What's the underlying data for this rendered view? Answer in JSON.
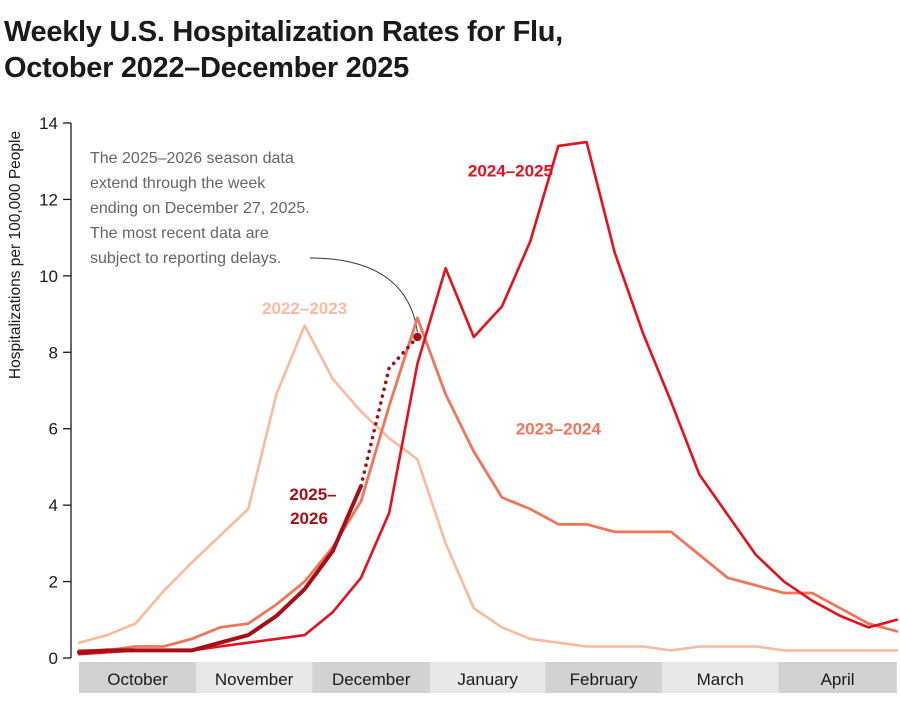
{
  "title": {
    "line1": "Weekly U.S. Hospitalization Rates for Flu,",
    "line2": "October 2022–December 2025"
  },
  "chart_data": {
    "type": "line",
    "title": "Weekly U.S. Hospitalization Rates for Flu, October 2022–December 2025",
    "xlabel": "",
    "ylabel": "Hospitalizations per 100,000 People",
    "ylim": [
      0,
      14
    ],
    "yticks": [
      0,
      2,
      4,
      6,
      8,
      10,
      12,
      14
    ],
    "grid": false,
    "x_unit": "week of flu season (week 0 = start of October)",
    "x_range": [
      0,
      29
    ],
    "months": [
      {
        "label": "October",
        "start_week": 0,
        "end_week": 4.15,
        "shade": "dark"
      },
      {
        "label": "November",
        "start_week": 4.15,
        "end_week": 8.27,
        "shade": "light"
      },
      {
        "label": "December",
        "start_week": 8.27,
        "end_week": 12.45,
        "shade": "dark"
      },
      {
        "label": "January",
        "start_week": 12.45,
        "end_week": 16.53,
        "shade": "light"
      },
      {
        "label": "February",
        "start_week": 16.53,
        "end_week": 20.68,
        "shade": "dark"
      },
      {
        "label": "March",
        "start_week": 20.68,
        "end_week": 24.8,
        "shade": "light"
      },
      {
        "label": "April",
        "start_week": 24.8,
        "end_week": 29.0,
        "shade": "dark"
      }
    ],
    "series": [
      {
        "name": "2022–2023",
        "color": "#fbb9a0",
        "weeks": [
          0,
          1,
          2,
          3,
          4,
          5,
          6,
          7,
          8,
          9,
          10,
          11,
          12,
          13,
          14,
          15,
          16,
          17,
          18,
          19,
          20,
          21,
          22,
          23,
          24,
          25,
          26,
          27,
          28,
          29
        ],
        "values": [
          0.4,
          0.6,
          0.9,
          1.75,
          2.5,
          3.2,
          3.9,
          6.9,
          8.7,
          7.3,
          6.45,
          5.75,
          5.2,
          3.0,
          1.3,
          0.8,
          0.5,
          0.4,
          0.3,
          0.3,
          0.3,
          0.2,
          0.3,
          0.3,
          0.3,
          0.2,
          0.2,
          0.2,
          0.2,
          0.2
        ],
        "label_week": 8,
        "label_value": 9.0
      },
      {
        "name": "2023–2024",
        "color": "#f0765a",
        "weeks": [
          0,
          1,
          2,
          3,
          4,
          5,
          6,
          7,
          8,
          9,
          10,
          11,
          12,
          13,
          14,
          15,
          16,
          17,
          18,
          19,
          20,
          21,
          22,
          23,
          24,
          25,
          26,
          27,
          28,
          29
        ],
        "values": [
          0.2,
          0.2,
          0.3,
          0.3,
          0.5,
          0.8,
          0.9,
          1.4,
          2.0,
          2.9,
          4.1,
          6.6,
          8.9,
          6.9,
          5.4,
          4.2,
          3.9,
          3.5,
          3.5,
          3.3,
          3.3,
          3.3,
          2.7,
          2.1,
          1.9,
          1.7,
          1.7,
          1.3,
          0.9,
          0.7
        ],
        "label_week": 17,
        "label_value": 5.85
      },
      {
        "name": "2024–2025",
        "color": "#e8101e",
        "weeks": [
          0,
          1,
          2,
          3,
          4,
          5,
          6,
          7,
          8,
          9,
          10,
          11,
          12,
          13,
          14,
          15,
          16,
          17,
          18,
          19,
          20,
          21,
          22,
          23,
          24,
          25,
          26,
          27,
          28,
          29
        ],
        "values": [
          0.1,
          0.15,
          0.2,
          0.2,
          0.2,
          0.3,
          0.4,
          0.5,
          0.6,
          1.2,
          2.1,
          3.8,
          7.7,
          10.2,
          8.4,
          9.2,
          10.9,
          13.4,
          13.5,
          10.6,
          8.5,
          6.7,
          4.8,
          3.75,
          2.7,
          2.0,
          1.5,
          1.1,
          0.8,
          1.0
        ],
        "label_week": 15.3,
        "label_value": 12.6
      },
      {
        "name": "2025–2026",
        "color": "#a50f15",
        "weeks": [
          0,
          1,
          2,
          3,
          4,
          5,
          6,
          7,
          8,
          9,
          10
        ],
        "values": [
          0.15,
          0.2,
          0.2,
          0.2,
          0.2,
          0.4,
          0.6,
          1.1,
          1.8,
          2.8,
          4.5
        ],
        "provisional_weeks": [
          10,
          11,
          11.15,
          12
        ],
        "provisional_values": [
          4.5,
          7.6,
          7.7,
          8.4
        ],
        "label_line1": "2025–",
        "label_line2": "2026"
      }
    ],
    "annotation": {
      "lines": [
        "The 2025–2026 season data",
        "extend through the week",
        "ending on December 27, 2025.",
        "The most recent data are",
        "subject to reporting delays."
      ],
      "points_to_series": "2025–2026",
      "points_to_week": 12,
      "points_to_value": 8.4
    }
  }
}
